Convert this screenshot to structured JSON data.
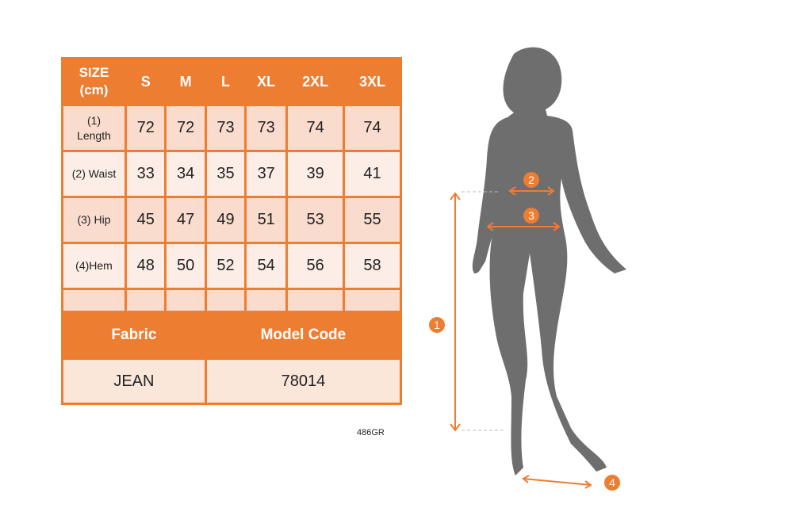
{
  "table": {
    "header": [
      "SIZE\n(cm)",
      "S",
      "M",
      "L",
      "XL",
      "2XL",
      "3XL"
    ],
    "header_label_lines": [
      "SIZE",
      "(cm)"
    ],
    "rows": [
      {
        "label_lines": [
          "(1)",
          "Length"
        ],
        "values": [
          "72",
          "72",
          "73",
          "73",
          "74",
          "74"
        ]
      },
      {
        "label_lines": [
          "(2) Waist"
        ],
        "values": [
          "33",
          "34",
          "35",
          "37",
          "39",
          "41"
        ]
      },
      {
        "label_lines": [
          "(3) Hip"
        ],
        "values": [
          "45",
          "47",
          "49",
          "51",
          "53",
          "55"
        ]
      },
      {
        "label_lines": [
          "(4)Hem"
        ],
        "values": [
          "48",
          "50",
          "52",
          "54",
          "56",
          "58"
        ]
      }
    ],
    "fabric_label": "Fabric",
    "model_code_label": "Model Code",
    "fabric_value": "JEAN",
    "model_code_value": "78014"
  },
  "product_code": "486GR",
  "figure": {
    "markers": [
      "1",
      "2",
      "3",
      "4"
    ]
  },
  "colors": {
    "accent": "#ED7D31",
    "silhouette": "#6E6E6E"
  }
}
